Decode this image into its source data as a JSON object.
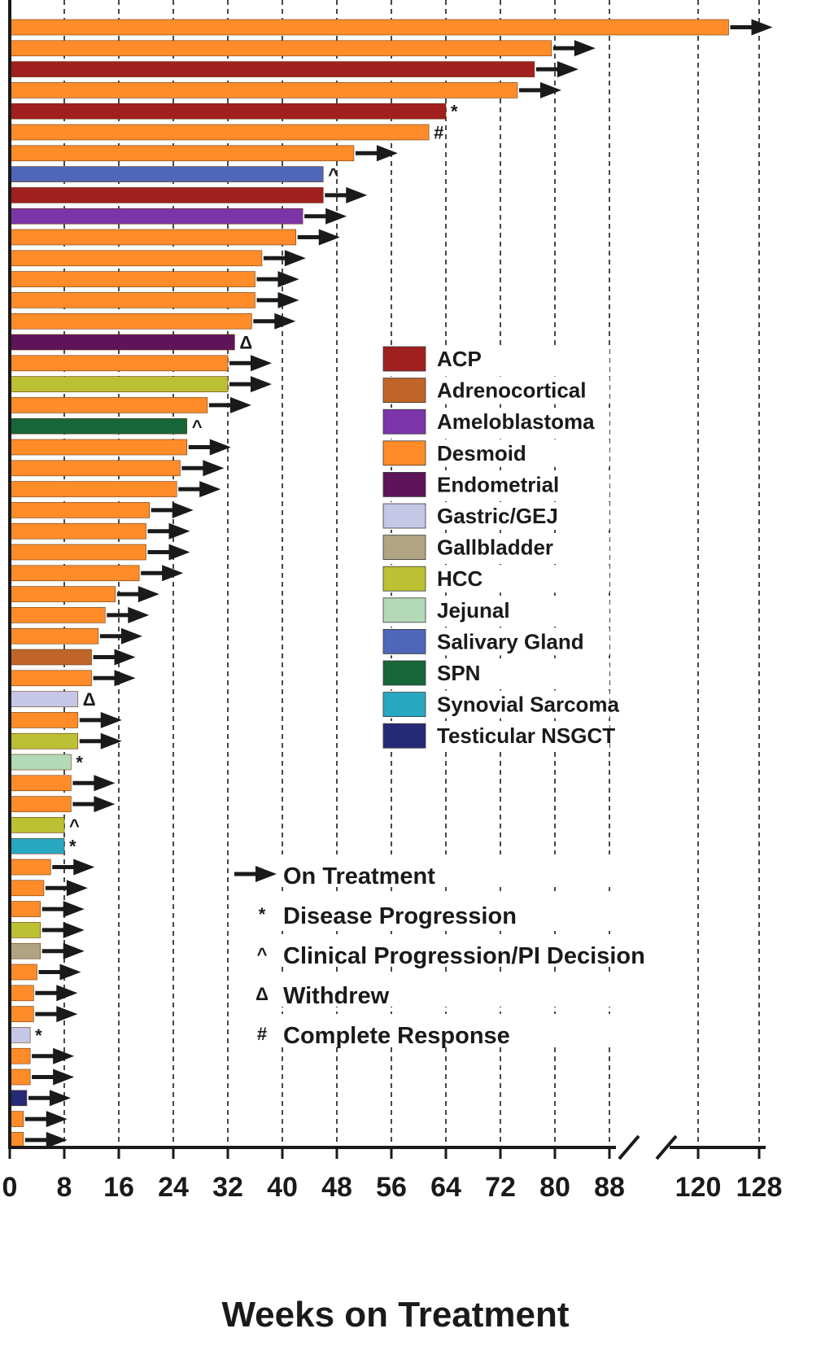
{
  "chart_data": {
    "type": "bar",
    "orientation": "horizontal",
    "xlabel": "Weeks on Treatment",
    "x_ticks": [
      "0",
      "8",
      "16",
      "24",
      "32",
      "40",
      "48",
      "56",
      "64",
      "72",
      "80",
      "88",
      "120",
      "128"
    ],
    "x_axis_break": [
      88,
      120
    ],
    "grid": "vertical dashed",
    "legend_placement": "right-center",
    "categories": [
      {
        "name": "ACP",
        "color": "#a0201f"
      },
      {
        "name": "Adrenocortical",
        "color": "#c0652a"
      },
      {
        "name": "Ameloblastoma",
        "color": "#7b35a8"
      },
      {
        "name": "Desmoid",
        "color": "#ff8c29"
      },
      {
        "name": "Endometrial",
        "color": "#5e1458"
      },
      {
        "name": "Gastric/GEJ",
        "color": "#c6c6e6"
      },
      {
        "name": "Gallbladder",
        "color": "#b0a482"
      },
      {
        "name": "HCC",
        "color": "#bcc033"
      },
      {
        "name": "Jejunal",
        "color": "#b3d9b6"
      },
      {
        "name": "Salivary Gland",
        "color": "#5066b8"
      },
      {
        "name": "SPN",
        "color": "#16663a"
      },
      {
        "name": "Synovial Sarcoma",
        "color": "#27a7c0"
      },
      {
        "name": "Testicular NSGCT",
        "color": "#242a78"
      }
    ],
    "symbol_legend": [
      {
        "symbol": "arrow",
        "label": "On Treatment"
      },
      {
        "symbol": "*",
        "label": "Disease  Progression"
      },
      {
        "symbol": "^",
        "label": "Clinical  Progression/PI Decision"
      },
      {
        "symbol": "Δ",
        "label": "Withdrew"
      },
      {
        "symbol": "#",
        "label": "Complete Response"
      }
    ],
    "patients": [
      {
        "category": "Desmoid",
        "weeks": 124,
        "marker": "arrow"
      },
      {
        "category": "Desmoid",
        "weeks": 79.5,
        "marker": "arrow"
      },
      {
        "category": "ACP",
        "weeks": 77,
        "marker": "arrow"
      },
      {
        "category": "Desmoid",
        "weeks": 74.5,
        "marker": "arrow"
      },
      {
        "category": "ACP",
        "weeks": 64,
        "marker": "*"
      },
      {
        "category": "Desmoid",
        "weeks": 61.5,
        "marker": "#"
      },
      {
        "category": "Desmoid",
        "weeks": 50.5,
        "marker": "arrow"
      },
      {
        "category": "Salivary Gland",
        "weeks": 46,
        "marker": "^"
      },
      {
        "category": "ACP",
        "weeks": 46,
        "marker": "arrow"
      },
      {
        "category": "Ameloblastoma",
        "weeks": 43,
        "marker": "arrow"
      },
      {
        "category": "Desmoid",
        "weeks": 42,
        "marker": "arrow"
      },
      {
        "category": "Desmoid",
        "weeks": 37,
        "marker": "arrow"
      },
      {
        "category": "Desmoid",
        "weeks": 36,
        "marker": "arrow"
      },
      {
        "category": "Desmoid",
        "weeks": 36,
        "marker": "arrow"
      },
      {
        "category": "Desmoid",
        "weeks": 35.5,
        "marker": "arrow"
      },
      {
        "category": "Endometrial",
        "weeks": 33,
        "marker": "Δ"
      },
      {
        "category": "Desmoid",
        "weeks": 32,
        "marker": "arrow"
      },
      {
        "category": "HCC",
        "weeks": 32,
        "marker": "arrow"
      },
      {
        "category": "Desmoid",
        "weeks": 29,
        "marker": "arrow"
      },
      {
        "category": "SPN",
        "weeks": 26,
        "marker": "^"
      },
      {
        "category": "Desmoid",
        "weeks": 26,
        "marker": "arrow"
      },
      {
        "category": "Desmoid",
        "weeks": 25,
        "marker": "arrow"
      },
      {
        "category": "Desmoid",
        "weeks": 24.5,
        "marker": "arrow"
      },
      {
        "category": "Desmoid",
        "weeks": 20.5,
        "marker": "arrow"
      },
      {
        "category": "Desmoid",
        "weeks": 20,
        "marker": "arrow"
      },
      {
        "category": "Desmoid",
        "weeks": 20,
        "marker": "arrow"
      },
      {
        "category": "Desmoid",
        "weeks": 19,
        "marker": "arrow"
      },
      {
        "category": "Desmoid",
        "weeks": 15.5,
        "marker": "arrow"
      },
      {
        "category": "Desmoid",
        "weeks": 14,
        "marker": "arrow"
      },
      {
        "category": "Desmoid",
        "weeks": 13,
        "marker": "arrow"
      },
      {
        "category": "Adrenocortical",
        "weeks": 12,
        "marker": "arrow"
      },
      {
        "category": "Desmoid",
        "weeks": 12,
        "marker": "arrow"
      },
      {
        "category": "Gastric/GEJ",
        "weeks": 10,
        "marker": "Δ"
      },
      {
        "category": "Desmoid",
        "weeks": 10,
        "marker": "arrow"
      },
      {
        "category": "HCC",
        "weeks": 10,
        "marker": "arrow"
      },
      {
        "category": "Jejunal",
        "weeks": 9,
        "marker": "*"
      },
      {
        "category": "Desmoid",
        "weeks": 9,
        "marker": "arrow"
      },
      {
        "category": "Desmoid",
        "weeks": 9,
        "marker": "arrow"
      },
      {
        "category": "HCC",
        "weeks": 8,
        "marker": "^"
      },
      {
        "category": "Synovial Sarcoma",
        "weeks": 8,
        "marker": "*"
      },
      {
        "category": "Desmoid",
        "weeks": 6,
        "marker": "arrow"
      },
      {
        "category": "Desmoid",
        "weeks": 5,
        "marker": "arrow"
      },
      {
        "category": "Desmoid",
        "weeks": 4.5,
        "marker": "arrow"
      },
      {
        "category": "HCC",
        "weeks": 4.5,
        "marker": "arrow"
      },
      {
        "category": "Gallbladder",
        "weeks": 4.5,
        "marker": "arrow"
      },
      {
        "category": "Desmoid",
        "weeks": 4,
        "marker": "arrow"
      },
      {
        "category": "Desmoid",
        "weeks": 3.5,
        "marker": "arrow"
      },
      {
        "category": "Desmoid",
        "weeks": 3.5,
        "marker": "arrow"
      },
      {
        "category": "Gastric/GEJ",
        "weeks": 3,
        "marker": "*"
      },
      {
        "category": "Desmoid",
        "weeks": 3,
        "marker": "arrow"
      },
      {
        "category": "Desmoid",
        "weeks": 3,
        "marker": "arrow"
      },
      {
        "category": "Testicular NSGCT",
        "weeks": 2.5,
        "marker": "arrow"
      },
      {
        "category": "Desmoid",
        "weeks": 2,
        "marker": "arrow"
      },
      {
        "category": "Desmoid",
        "weeks": 2,
        "marker": "arrow"
      }
    ]
  }
}
